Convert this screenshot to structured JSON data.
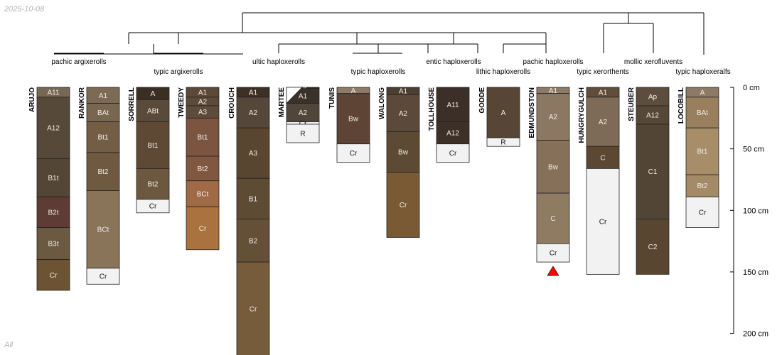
{
  "date_stamp": "2025-10-08",
  "footer_tag": "All",
  "depth_axis": {
    "unit": "cm",
    "max_depth_cm": 200,
    "ticks": [
      0,
      50,
      100,
      150,
      200
    ],
    "tick_labels": [
      "0 cm",
      "50 cm",
      "100 cm",
      "150 cm",
      "200 cm"
    ]
  },
  "taxa_labels": [
    "pachic argixerolls",
    "typic argixerolls",
    "ultic haploxerolls",
    "typic haploxerolls",
    "entic haploxerolls",
    "lithic haploxerolls",
    "pachic haploxerolls",
    "typic xerorthents",
    "mollic xerofluvents",
    "typic haploxeralfs"
  ],
  "profiles": [
    {
      "name": "ARUJO",
      "horizons": [
        {
          "label": "A11",
          "top": 0,
          "bottom": 8,
          "color": "#776856"
        },
        {
          "label": "A12",
          "top": 8,
          "bottom": 58,
          "color": "#564939"
        },
        {
          "label": "B1t",
          "top": 58,
          "bottom": 89,
          "color": "#544634"
        },
        {
          "label": "B2t",
          "top": 89,
          "bottom": 114,
          "color": "#5e3b34"
        },
        {
          "label": "B3t",
          "top": 114,
          "bottom": 140,
          "color": "#6c5941"
        },
        {
          "label": "Cr",
          "top": 140,
          "bottom": 165,
          "color": "#6c5432"
        }
      ]
    },
    {
      "name": "RANKOR",
      "horizons": [
        {
          "label": "A1",
          "top": 0,
          "bottom": 13,
          "color": "#7b6a54"
        },
        {
          "label": "BAt",
          "top": 13,
          "bottom": 28,
          "color": "#78664f"
        },
        {
          "label": "Bt1",
          "top": 28,
          "bottom": 53,
          "color": "#735d44"
        },
        {
          "label": "Bt2",
          "top": 53,
          "bottom": 84,
          "color": "#6f5a41"
        },
        {
          "label": "BCt",
          "top": 84,
          "bottom": 147,
          "color": "#89745a"
        },
        {
          "label": "Cr",
          "top": 147,
          "bottom": 160,
          "color": "#f2f2f2"
        }
      ]
    },
    {
      "name": "SORRELL",
      "horizons": [
        {
          "label": "A",
          "top": 0,
          "bottom": 10,
          "color": "#3b2f24"
        },
        {
          "label": "ABt",
          "top": 10,
          "bottom": 28,
          "color": "#5a4a39"
        },
        {
          "label": "Bt1",
          "top": 28,
          "bottom": 66,
          "color": "#5e4a34"
        },
        {
          "label": "Bt2",
          "top": 66,
          "bottom": 91,
          "color": "#6b583f"
        },
        {
          "label": "Cr",
          "top": 91,
          "bottom": 102,
          "color": "#f2f2f2"
        }
      ]
    },
    {
      "name": "TWEEDY",
      "horizons": [
        {
          "label": "A1",
          "top": 0,
          "bottom": 8,
          "color": "#5b4a3a"
        },
        {
          "label": "A2",
          "top": 8,
          "bottom": 15,
          "color": "#5d4b3a"
        },
        {
          "label": "A3",
          "top": 15,
          "bottom": 25,
          "color": "#5e4c3b"
        },
        {
          "label": "Bt1",
          "top": 25,
          "bottom": 56,
          "color": "#7c5540"
        },
        {
          "label": "Bt2",
          "top": 56,
          "bottom": 76,
          "color": "#80573f"
        },
        {
          "label": "BCt",
          "top": 76,
          "bottom": 97,
          "color": "#a06a47"
        },
        {
          "label": "Cr",
          "top": 97,
          "bottom": 132,
          "color": "#a9723f"
        }
      ]
    },
    {
      "name": "CROUCH",
      "horizons": [
        {
          "label": "A1",
          "top": 0,
          "bottom": 8,
          "color": "#3d3024"
        },
        {
          "label": "A2",
          "top": 8,
          "bottom": 33,
          "color": "#55473a"
        },
        {
          "label": "A3",
          "top": 33,
          "bottom": 74,
          "color": "#584630"
        },
        {
          "label": "B1",
          "top": 74,
          "bottom": 107,
          "color": "#5e4b34"
        },
        {
          "label": "B2",
          "top": 107,
          "bottom": 142,
          "color": "#645037"
        },
        {
          "label": "Cr",
          "top": 142,
          "bottom": 218,
          "color": "#765c3a"
        }
      ]
    },
    {
      "name": "MARTEE",
      "horizons": [
        {
          "label": "Oi",
          "top": 0,
          "bottom": 1,
          "color": "#2d2a25"
        },
        {
          "label": "A1",
          "top": 1,
          "bottom": 13,
          "color": "#3a322a"
        },
        {
          "label": "A2",
          "top": 13,
          "bottom": 28,
          "color": "#51463a"
        },
        {
          "label": "Cr",
          "top": 28,
          "bottom": 30,
          "color": "#f2f2f2"
        },
        {
          "label": "R",
          "top": 30,
          "bottom": 45,
          "color": "#f2f2f2"
        }
      ]
    },
    {
      "name": "TUNIS",
      "horizons": [
        {
          "label": "A",
          "top": 0,
          "bottom": 5,
          "color": "#8e7b67"
        },
        {
          "label": "Bw",
          "top": 5,
          "bottom": 46,
          "color": "#5d4434"
        },
        {
          "label": "Cr",
          "top": 46,
          "bottom": 61,
          "color": "#f2f2f2"
        }
      ]
    },
    {
      "name": "WALONG",
      "horizons": [
        {
          "label": "A1",
          "top": 0,
          "bottom": 6,
          "color": "#4b3f32"
        },
        {
          "label": "A2",
          "top": 6,
          "bottom": 36,
          "color": "#5b4a39"
        },
        {
          "label": "Bw",
          "top": 36,
          "bottom": 69,
          "color": "#5d4a34"
        },
        {
          "label": "Cr",
          "top": 69,
          "bottom": 122,
          "color": "#7a5a35"
        }
      ]
    },
    {
      "name": "TOLLHOUSE",
      "horizons": [
        {
          "label": "A11",
          "top": 0,
          "bottom": 28,
          "color": "#3b2f27"
        },
        {
          "label": "A12",
          "top": 28,
          "bottom": 46,
          "color": "#3d3026"
        },
        {
          "label": "Cr",
          "top": 46,
          "bottom": 61,
          "color": "#f2f2f2"
        }
      ]
    },
    {
      "name": "GODDE",
      "horizons": [
        {
          "label": "A",
          "top": 0,
          "bottom": 41,
          "color": "#574636"
        },
        {
          "label": "R",
          "top": 41,
          "bottom": 48,
          "color": "#f2f2f2"
        }
      ]
    },
    {
      "name": "EDMUNDSTON",
      "horizons": [
        {
          "label": "A1",
          "top": 0,
          "bottom": 5,
          "color": "#8d7b67"
        },
        {
          "label": "A2",
          "top": 5,
          "bottom": 43,
          "color": "#8c7862"
        },
        {
          "label": "Bw",
          "top": 43,
          "bottom": 86,
          "color": "#86705a"
        },
        {
          "label": "C",
          "top": 86,
          "bottom": 127,
          "color": "#8f7a62"
        },
        {
          "label": "Cr",
          "top": 127,
          "bottom": 142,
          "color": "#f2f2f2"
        }
      ]
    },
    {
      "name": "HUNGRYGULCH",
      "horizons": [
        {
          "label": "A1",
          "top": 0,
          "bottom": 8,
          "color": "#5f4e3c"
        },
        {
          "label": "A2",
          "top": 8,
          "bottom": 48,
          "color": "#7e6b57"
        },
        {
          "label": "C",
          "top": 48,
          "bottom": 66,
          "color": "#5b4732"
        },
        {
          "label": "Cr",
          "top": 66,
          "bottom": 152,
          "color": "#f2f2f2"
        }
      ]
    },
    {
      "name": "STEUBER",
      "horizons": [
        {
          "label": "Ap",
          "top": 0,
          "bottom": 15,
          "color": "#5d4d3e"
        },
        {
          "label": "A12",
          "top": 15,
          "bottom": 30,
          "color": "#564737"
        },
        {
          "label": "C1",
          "top": 30,
          "bottom": 107,
          "color": "#524536"
        },
        {
          "label": "C2",
          "top": 107,
          "bottom": 152,
          "color": "#594631"
        }
      ]
    },
    {
      "name": "LOCOBILL",
      "horizons": [
        {
          "label": "A",
          "top": 0,
          "bottom": 8,
          "color": "#8c7a66"
        },
        {
          "label": "BAt",
          "top": 8,
          "bottom": 33,
          "color": "#9a7f5e"
        },
        {
          "label": "Bt1",
          "top": 33,
          "bottom": 71,
          "color": "#a88d69"
        },
        {
          "label": "Bt2",
          "top": 71,
          "bottom": 89,
          "color": "#a48a66"
        },
        {
          "label": "Cr",
          "top": 89,
          "bottom": 114,
          "color": "#f2f2f2"
        }
      ]
    }
  ]
}
